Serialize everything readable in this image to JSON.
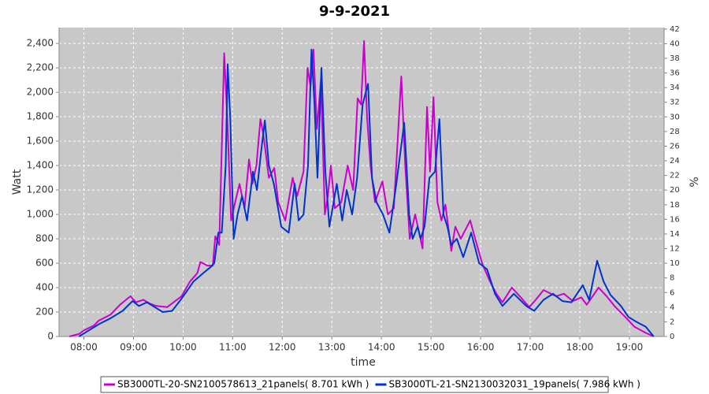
{
  "chart_data": {
    "type": "line",
    "title": "9-9-2021",
    "x_label": "time",
    "y_label": "Watt",
    "y2_label": "%",
    "xlim": [
      7.5,
      19.7
    ],
    "xticks": [
      {
        "value": 8,
        "label": "08:00"
      },
      {
        "value": 9,
        "label": "09:00"
      },
      {
        "value": 10,
        "label": "10:00"
      },
      {
        "value": 11,
        "label": "11:00"
      },
      {
        "value": 12,
        "label": "12:00"
      },
      {
        "value": 13,
        "label": "13:00"
      },
      {
        "value": 14,
        "label": "14:00"
      },
      {
        "value": 15,
        "label": "15:00"
      },
      {
        "value": 16,
        "label": "16:00"
      },
      {
        "value": 17,
        "label": "17:00"
      },
      {
        "value": 18,
        "label": "18:00"
      },
      {
        "value": 19,
        "label": "19:00"
      }
    ],
    "ylim": [
      0,
      2530
    ],
    "yticks": [
      0,
      200,
      400,
      600,
      800,
      {
        "value": 1000,
        "label": "1,000"
      },
      {
        "value": 1200,
        "label": "1,200"
      },
      {
        "value": 1400,
        "label": "1,400"
      },
      {
        "value": 1600,
        "label": "1,600"
      },
      {
        "value": 1800,
        "label": "1,800"
      },
      {
        "value": 2000,
        "label": "2,000"
      },
      {
        "value": 2200,
        "label": "2,200"
      },
      {
        "value": 2400,
        "label": "2,400"
      }
    ],
    "y2lim": [
      0,
      42.2
    ],
    "y2ticks": [
      0,
      2,
      4,
      6,
      8,
      10,
      12,
      14,
      16,
      18,
      20,
      22,
      24,
      26,
      28,
      30,
      32,
      34,
      36,
      38,
      40,
      42
    ],
    "grid": true,
    "legend": "bottom",
    "series": [
      {
        "name": "SB3000TL-20-SN2100578613_21panels( 8.701 kWh )",
        "color": "#cc00cc",
        "x": [
          7.71,
          7.9,
          8.0,
          8.2,
          8.3,
          8.54,
          8.73,
          8.94,
          9.05,
          9.2,
          9.33,
          9.46,
          9.68,
          9.97,
          10.14,
          10.29,
          10.35,
          10.49,
          10.6,
          10.65,
          10.73,
          10.83,
          10.89,
          10.97,
          11.05,
          11.14,
          11.24,
          11.33,
          11.4,
          11.48,
          11.56,
          11.62,
          11.73,
          11.84,
          11.92,
          12.06,
          12.21,
          12.3,
          12.43,
          12.51,
          12.57,
          12.63,
          12.7,
          12.78,
          12.86,
          12.92,
          12.98,
          13.06,
          13.19,
          13.32,
          13.43,
          13.52,
          13.59,
          13.65,
          13.71,
          13.78,
          13.87,
          14.02,
          14.13,
          14.25,
          14.4,
          14.48,
          14.57,
          14.68,
          14.83,
          14.92,
          14.98,
          15.05,
          15.13,
          15.21,
          15.29,
          15.41,
          15.49,
          15.6,
          15.79,
          15.89,
          16.03,
          16.19,
          16.32,
          16.44,
          16.63,
          16.79,
          16.98,
          17.11,
          17.27,
          17.52,
          17.68,
          17.86,
          18.03,
          18.14,
          18.38,
          18.54,
          18.7,
          18.94,
          19.1,
          19.33,
          19.49
        ],
        "values": [
          0,
          20,
          50,
          90,
          130,
          180,
          260,
          330,
          280,
          300,
          270,
          250,
          240,
          330,
          450,
          520,
          610,
          580,
          580,
          820,
          750,
          2320,
          1800,
          950,
          1100,
          1250,
          1050,
          1450,
          1250,
          1400,
          1780,
          1650,
          1300,
          1380,
          1100,
          950,
          1300,
          1150,
          1350,
          2200,
          2050,
          2350,
          1700,
          2100,
          1000,
          1150,
          1400,
          1050,
          1100,
          1400,
          1200,
          1950,
          1900,
          2420,
          1800,
          1400,
          1100,
          1270,
          1000,
          1050,
          2130,
          1400,
          800,
          1000,
          720,
          1880,
          1350,
          1960,
          1100,
          950,
          1080,
          700,
          900,
          800,
          950,
          800,
          600,
          450,
          350,
          280,
          400,
          330,
          240,
          300,
          380,
          330,
          350,
          290,
          320,
          260,
          400,
          330,
          250,
          150,
          80,
          30,
          0
        ]
      },
      {
        "name": "SB3000TL-21-SN2130032031_19panels( 7.986 kWh )",
        "color": "#0033cc",
        "x": [
          7.9,
          8.06,
          8.3,
          8.54,
          8.78,
          8.98,
          9.11,
          9.27,
          9.43,
          9.59,
          9.78,
          9.97,
          10.21,
          10.41,
          10.56,
          10.63,
          10.71,
          10.78,
          10.86,
          10.9,
          10.95,
          11.02,
          11.1,
          11.19,
          11.29,
          11.41,
          11.49,
          11.57,
          11.65,
          11.73,
          11.83,
          11.98,
          12.13,
          12.25,
          12.33,
          12.43,
          12.52,
          12.59,
          12.65,
          12.71,
          12.79,
          12.87,
          12.95,
          13.1,
          13.21,
          13.3,
          13.41,
          13.51,
          13.62,
          13.73,
          13.81,
          13.9,
          14.03,
          14.16,
          14.3,
          14.46,
          14.56,
          14.63,
          14.73,
          14.79,
          14.87,
          14.97,
          15.08,
          15.17,
          15.25,
          15.33,
          15.41,
          15.52,
          15.65,
          15.81,
          15.97,
          16.13,
          16.29,
          16.44,
          16.67,
          16.92,
          17.08,
          17.27,
          17.46,
          17.65,
          17.83,
          18.06,
          18.19,
          18.35,
          18.48,
          18.62,
          18.83,
          18.98,
          19.14,
          19.33,
          19.49
        ],
        "values": [
          0,
          40,
          100,
          150,
          210,
          290,
          250,
          280,
          240,
          200,
          210,
          310,
          450,
          520,
          570,
          600,
          850,
          850,
          1400,
          2230,
          1800,
          800,
          1000,
          1150,
          950,
          1350,
          1200,
          1500,
          1770,
          1400,
          1250,
          900,
          850,
          1250,
          950,
          1000,
          1400,
          2350,
          1900,
          1300,
          2200,
          1350,
          900,
          1250,
          950,
          1200,
          1000,
          1300,
          1900,
          2070,
          1300,
          1100,
          1000,
          850,
          1250,
          1750,
          1000,
          800,
          900,
          800,
          900,
          1300,
          1350,
          1780,
          1000,
          900,
          750,
          800,
          650,
          850,
          600,
          550,
          350,
          250,
          350,
          250,
          210,
          300,
          350,
          290,
          280,
          420,
          300,
          620,
          450,
          340,
          250,
          160,
          120,
          80,
          0
        ]
      }
    ]
  }
}
